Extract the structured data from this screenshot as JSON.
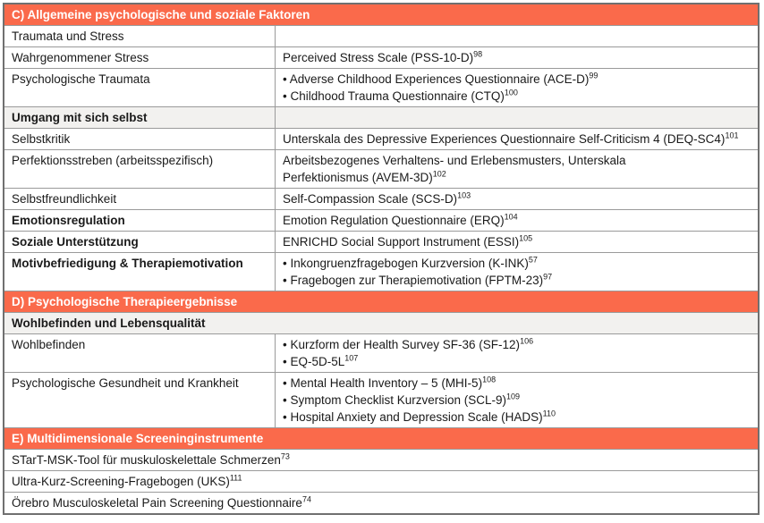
{
  "colors": {
    "section_header_bg": "#fa6a4b",
    "section_header_text": "#ffffff",
    "subheader_row_bg": "#f2f1ef",
    "grid_line": "#9a9a9a",
    "outer_border": "#707070",
    "body_text": "#1a1a1a"
  },
  "rows": [
    {
      "kind": "section",
      "label": "C) Allgemeine psychologische und soziale Faktoren"
    },
    {
      "kind": "data",
      "left": "Traumata und Stress",
      "right": []
    },
    {
      "kind": "data",
      "left": "Wahrgenommener Stress",
      "right": [
        {
          "text": "Perceived Stress Scale (PSS-10-D)",
          "sup": "98"
        }
      ]
    },
    {
      "kind": "data",
      "left": "Psychologische Traumata",
      "right": [
        {
          "text": "• Adverse Childhood Experiences Questionnaire (ACE-D)",
          "sup": "99"
        },
        {
          "text": "• Childhood Trauma Questionnaire (CTQ)",
          "sup": "100"
        }
      ]
    },
    {
      "kind": "data",
      "left": "Umgang mit sich selbst",
      "right": [],
      "style": "subheader"
    },
    {
      "kind": "data",
      "left": "Selbstkritik",
      "right": [
        {
          "text": "Unterskala des Depressive Experiences Questionnaire Self-Criticism 4 (DEQ-SC4)",
          "sup": "101"
        }
      ]
    },
    {
      "kind": "data",
      "left": "Perfektionsstreben (arbeitsspezifisch)",
      "right": [
        {
          "text": "Arbeitsbezogenes Verhaltens- und Erlebensmusters, Unterskala",
          "sup": ""
        },
        {
          "text": "Perfektionismus (AVEM-3D)",
          "sup": "102"
        }
      ]
    },
    {
      "kind": "data",
      "left": "Selbstfreundlichkeit",
      "right": [
        {
          "text": "Self-Compassion Scale (SCS-D)",
          "sup": "103"
        }
      ]
    },
    {
      "kind": "data",
      "left": "Emotionsregulation",
      "left_bold": true,
      "right": [
        {
          "text": "Emotion Regulation Questionnaire (ERQ)",
          "sup": "104"
        }
      ]
    },
    {
      "kind": "data",
      "left": "Soziale Unterstützung",
      "left_bold": true,
      "right": [
        {
          "text": "ENRICHD Social Support Instrument (ESSI)",
          "sup": "105"
        }
      ]
    },
    {
      "kind": "data",
      "left": "Motivbefriedigung & Therapiemotivation",
      "left_bold": true,
      "right": [
        {
          "text": "• Inkongruenzfragebogen Kurzversion (K-INK)",
          "sup": "57"
        },
        {
          "text": "• Fragebogen zur Therapiemotivation (FPTM-23)",
          "sup": "97"
        }
      ]
    },
    {
      "kind": "section",
      "label": "D) Psychologische Therapieergebnisse"
    },
    {
      "kind": "full",
      "text": "Wohlbefinden und Lebensqualität",
      "sup": "",
      "style": "subheader"
    },
    {
      "kind": "data",
      "left": "Wohlbefinden",
      "right": [
        {
          "text": "• Kurzform der Health Survey SF-36 (SF-12)",
          "sup": "106"
        },
        {
          "text": "• EQ-5D-5L",
          "sup": "107"
        }
      ]
    },
    {
      "kind": "data",
      "left": "Psychologische Gesundheit und Krankheit",
      "right": [
        {
          "text": "• Mental Health Inventory – 5 (MHI-5)",
          "sup": "108"
        },
        {
          "text": "• Symptom Checklist Kurzversion (SCL-9)",
          "sup": "109"
        },
        {
          "text": "• Hospital Anxiety and Depression Scale (HADS)",
          "sup": "110"
        }
      ]
    },
    {
      "kind": "section",
      "label": "E) Multidimensionale Screeninginstrumente"
    },
    {
      "kind": "full",
      "text": "STarT-MSK-Tool für muskuloskelettale Schmerzen",
      "sup": "73"
    },
    {
      "kind": "full",
      "text": "Ultra-Kurz-Screening-Fragebogen (UKS)",
      "sup": "111"
    },
    {
      "kind": "full",
      "text": "Örebro Musculoskeletal Pain Screening Questionnaire",
      "sup": "74"
    }
  ]
}
